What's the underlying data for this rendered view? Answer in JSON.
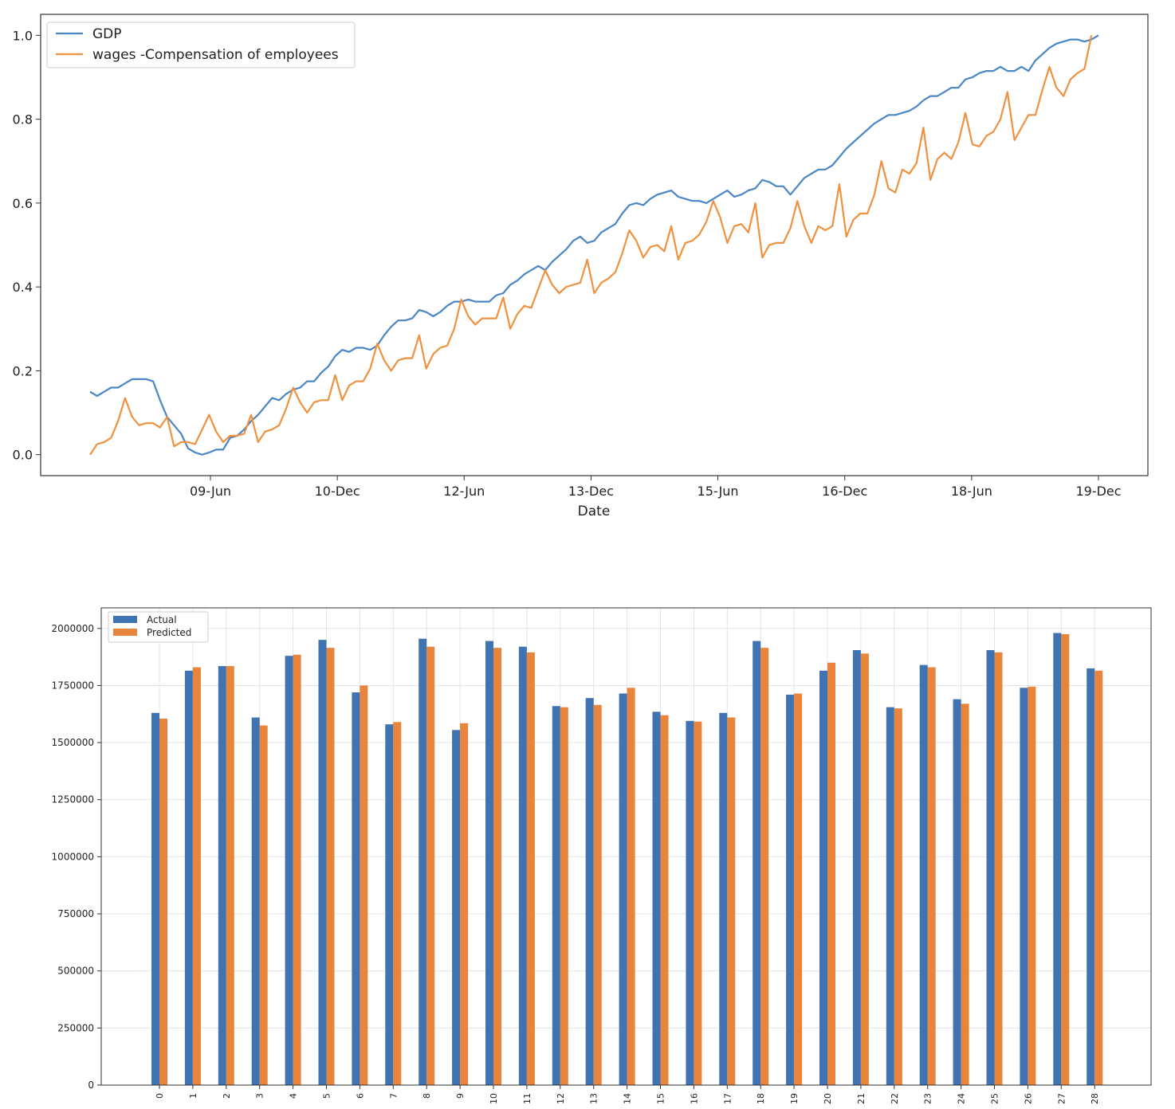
{
  "colors": {
    "blue": "#3f73b2",
    "orange": "#e8843c",
    "line_blue": "#4a86c5",
    "line_orange": "#f0913f"
  },
  "chart_data": [
    {
      "type": "line",
      "title": "",
      "xlabel": "Date",
      "ylabel": "",
      "ylim": [
        -0.05,
        1.05
      ],
      "yticks": [
        "0.0",
        "0.2",
        "0.4",
        "0.6",
        "0.8",
        "1.0"
      ],
      "xticks": [
        "09-Jun",
        "10-Dec",
        "12-Jun",
        "13-Dec",
        "15-Jun",
        "16-Dec",
        "18-Jun",
        "19-Dec"
      ],
      "legend": [
        "GDP",
        "wages -Compensation of employees"
      ],
      "legend_position": "top-left",
      "series": [
        {
          "name": "GDP",
          "values": [
            0.15,
            0.14,
            0.15,
            0.16,
            0.16,
            0.17,
            0.18,
            0.18,
            0.18,
            0.175,
            0.13,
            0.09,
            0.07,
            0.05,
            0.015,
            0.005,
            0.0,
            0.005,
            0.012,
            0.012,
            0.04,
            0.045,
            0.06,
            0.08,
            0.095,
            0.115,
            0.135,
            0.13,
            0.145,
            0.155,
            0.16,
            0.175,
            0.175,
            0.195,
            0.21,
            0.235,
            0.25,
            0.245,
            0.255,
            0.255,
            0.25,
            0.26,
            0.285,
            0.305,
            0.32,
            0.32,
            0.325,
            0.345,
            0.34,
            0.33,
            0.34,
            0.355,
            0.365,
            0.365,
            0.37,
            0.365,
            0.365,
            0.365,
            0.38,
            0.385,
            0.405,
            0.415,
            0.43,
            0.44,
            0.45,
            0.44,
            0.46,
            0.475,
            0.49,
            0.51,
            0.52,
            0.505,
            0.51,
            0.53,
            0.54,
            0.55,
            0.575,
            0.595,
            0.6,
            0.595,
            0.61,
            0.62,
            0.625,
            0.63,
            0.615,
            0.61,
            0.605,
            0.605,
            0.6,
            0.61,
            0.62,
            0.63,
            0.615,
            0.62,
            0.63,
            0.635,
            0.655,
            0.65,
            0.64,
            0.64,
            0.62,
            0.64,
            0.66,
            0.67,
            0.68,
            0.68,
            0.69,
            0.71,
            0.73,
            0.745,
            0.76,
            0.775,
            0.79,
            0.8,
            0.81,
            0.81,
            0.815,
            0.82,
            0.83,
            0.845,
            0.855,
            0.855,
            0.865,
            0.875,
            0.875,
            0.895,
            0.9,
            0.91,
            0.915,
            0.915,
            0.925,
            0.915,
            0.915,
            0.925,
            0.915,
            0.94,
            0.955,
            0.97,
            0.98,
            0.985,
            0.99,
            0.99,
            0.985,
            0.99,
            1.0
          ]
        },
        {
          "name": "wages -Compensation of employees",
          "values": [
            0.0,
            0.025,
            0.03,
            0.04,
            0.08,
            0.135,
            0.09,
            0.07,
            0.075,
            0.075,
            0.065,
            0.09,
            0.02,
            0.03,
            0.03,
            0.025,
            0.06,
            0.095,
            0.055,
            0.03,
            0.045,
            0.045,
            0.05,
            0.095,
            0.03,
            0.055,
            0.06,
            0.07,
            0.11,
            0.16,
            0.125,
            0.1,
            0.125,
            0.13,
            0.13,
            0.19,
            0.13,
            0.165,
            0.175,
            0.175,
            0.205,
            0.265,
            0.225,
            0.2,
            0.225,
            0.23,
            0.23,
            0.285,
            0.205,
            0.24,
            0.255,
            0.26,
            0.3,
            0.37,
            0.33,
            0.31,
            0.325,
            0.325,
            0.325,
            0.375,
            0.3,
            0.335,
            0.355,
            0.35,
            0.395,
            0.44,
            0.405,
            0.385,
            0.4,
            0.405,
            0.41,
            0.465,
            0.385,
            0.41,
            0.42,
            0.435,
            0.48,
            0.535,
            0.51,
            0.47,
            0.495,
            0.5,
            0.485,
            0.545,
            0.465,
            0.505,
            0.51,
            0.525,
            0.555,
            0.605,
            0.565,
            0.505,
            0.545,
            0.55,
            0.53,
            0.6,
            0.47,
            0.5,
            0.505,
            0.505,
            0.54,
            0.605,
            0.545,
            0.505,
            0.545,
            0.535,
            0.545,
            0.645,
            0.52,
            0.56,
            0.575,
            0.575,
            0.62,
            0.7,
            0.635,
            0.625,
            0.68,
            0.67,
            0.695,
            0.78,
            0.655,
            0.705,
            0.72,
            0.705,
            0.745,
            0.815,
            0.74,
            0.735,
            0.76,
            0.77,
            0.8,
            0.865,
            0.75,
            0.78,
            0.81,
            0.81,
            0.87,
            0.925,
            0.875,
            0.855,
            0.895,
            0.91,
            0.92,
            1.0
          ]
        }
      ]
    },
    {
      "type": "bar",
      "title": "",
      "xlabel": "",
      "ylabel": "",
      "ylim": [
        0,
        2090000
      ],
      "yticks": [
        "0",
        "250000",
        "500000",
        "750000",
        "1000000",
        "1250000",
        "1500000",
        "1750000",
        "2000000"
      ],
      "grid": true,
      "legend_position": "top-left",
      "categories": [
        "0",
        "1",
        "2",
        "3",
        "4",
        "5",
        "6",
        "7",
        "8",
        "9",
        "10",
        "11",
        "12",
        "13",
        "14",
        "15",
        "16",
        "17",
        "18",
        "19",
        "20",
        "21",
        "22",
        "23",
        "24",
        "25",
        "26",
        "27",
        "28"
      ],
      "series": [
        {
          "name": "Actual",
          "values": [
            1630000,
            1815000,
            1835000,
            1610000,
            1880000,
            1950000,
            1720000,
            1580000,
            1955000,
            1555000,
            1945000,
            1920000,
            1660000,
            1695000,
            1715000,
            1635000,
            1595000,
            1630000,
            1945000,
            1710000,
            1815000,
            1905000,
            1655000,
            1840000,
            1690000,
            1905000,
            1740000,
            1980000,
            1825000
          ]
        },
        {
          "name": "Predicted",
          "values": [
            1605000,
            1830000,
            1835000,
            1575000,
            1885000,
            1915000,
            1750000,
            1590000,
            1920000,
            1585000,
            1915000,
            1895000,
            1655000,
            1665000,
            1740000,
            1620000,
            1592000,
            1610000,
            1915000,
            1715000,
            1850000,
            1890000,
            1650000,
            1830000,
            1670000,
            1895000,
            1745000,
            1975000,
            1815000
          ]
        }
      ]
    }
  ]
}
